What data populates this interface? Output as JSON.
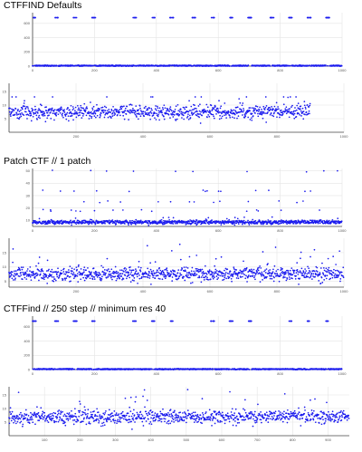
{
  "titles": {
    "t1": "CTFFIND Defaults",
    "t2": "Patch CTF // 1 patch",
    "t3": "CTFFind // 250 step // minimum res 40"
  },
  "colors": {
    "points": "#1a1aee",
    "axis": "#444444",
    "grid": "#e4e4e4",
    "background": "#ffffff"
  },
  "chart_data": [
    {
      "type": "scatter",
      "section": "CTFFIND Defaults",
      "title": "",
      "xlabel": "",
      "ylabel": "",
      "x_ticks": [
        0,
        200,
        400,
        600,
        800,
        1000
      ],
      "y_ticks": [
        0,
        200,
        400,
        600
      ],
      "xlim": [
        0,
        1000
      ],
      "ylim": [
        0,
        750
      ],
      "grid": true,
      "n_points": 1000,
      "distribution": {
        "baseline_range": [
          0,
          12
        ],
        "outlier_value": 680,
        "outlier_fraction": 0.06
      }
    },
    {
      "type": "scatter",
      "section": "CTFFIND Defaults",
      "title": "",
      "xlabel": "",
      "ylabel": "",
      "x_ticks": [
        200,
        400,
        600,
        800,
        1000
      ],
      "y_ticks": [
        5,
        10,
        15
      ],
      "xlim": [
        0,
        1000
      ],
      "ylim": [
        0,
        18
      ],
      "grid": true,
      "n_points": 900,
      "distribution": {
        "mean": 7.5,
        "spread": 1.3,
        "range": [
          3,
          13
        ]
      }
    },
    {
      "type": "scatter",
      "section": "Patch CTF // 1 patch",
      "title": "",
      "xlabel": "",
      "ylabel": "",
      "x_ticks": [
        0,
        200,
        400,
        600,
        800,
        1000
      ],
      "y_ticks": [
        10,
        20,
        30,
        40,
        50
      ],
      "xlim": [
        0,
        1000
      ],
      "ylim": [
        5,
        52
      ],
      "grid": true,
      "n_points": 1000,
      "distribution": {
        "mean": 8.5,
        "spread": 0.8,
        "outlier_levels": [
          50,
          34,
          25,
          18,
          12
        ]
      }
    },
    {
      "type": "scatter",
      "section": "Patch CTF // 1 patch",
      "title": "",
      "xlabel": "",
      "ylabel": "",
      "x_ticks": [
        200,
        400,
        600,
        800,
        1000
      ],
      "y_ticks": [
        5,
        10,
        15
      ],
      "xlim": [
        0,
        1000
      ],
      "ylim": [
        3,
        20
      ],
      "grid": true,
      "n_points": 1000,
      "distribution": {
        "mean": 7.5,
        "spread": 1.2,
        "range": [
          4,
          18
        ]
      }
    },
    {
      "type": "scatter",
      "section": "CTFFind // 250 step // minimum res 40",
      "title": "",
      "xlabel": "",
      "ylabel": "",
      "x_ticks": [
        0,
        200,
        400,
        600,
        800,
        1000
      ],
      "y_ticks": [
        0,
        200,
        400,
        600
      ],
      "xlim": [
        0,
        1000
      ],
      "ylim": [
        0,
        750
      ],
      "grid": true,
      "n_points": 1000,
      "distribution": {
        "baseline_range": [
          0,
          12
        ],
        "outlier_value": 680,
        "outlier_fraction": 0.05
      }
    },
    {
      "type": "scatter",
      "section": "CTFFind // 250 step // minimum res 40",
      "title": "",
      "xlabel": "",
      "ylabel": "",
      "x_ticks": [
        100,
        200,
        300,
        400,
        500,
        600,
        700,
        800,
        900
      ],
      "y_ticks": [
        5,
        10,
        15
      ],
      "xlim": [
        0,
        960
      ],
      "ylim": [
        0,
        18
      ],
      "grid": true,
      "n_points": 960,
      "distribution": {
        "mean": 7,
        "spread": 1.3,
        "range": [
          2,
          17
        ]
      }
    }
  ]
}
